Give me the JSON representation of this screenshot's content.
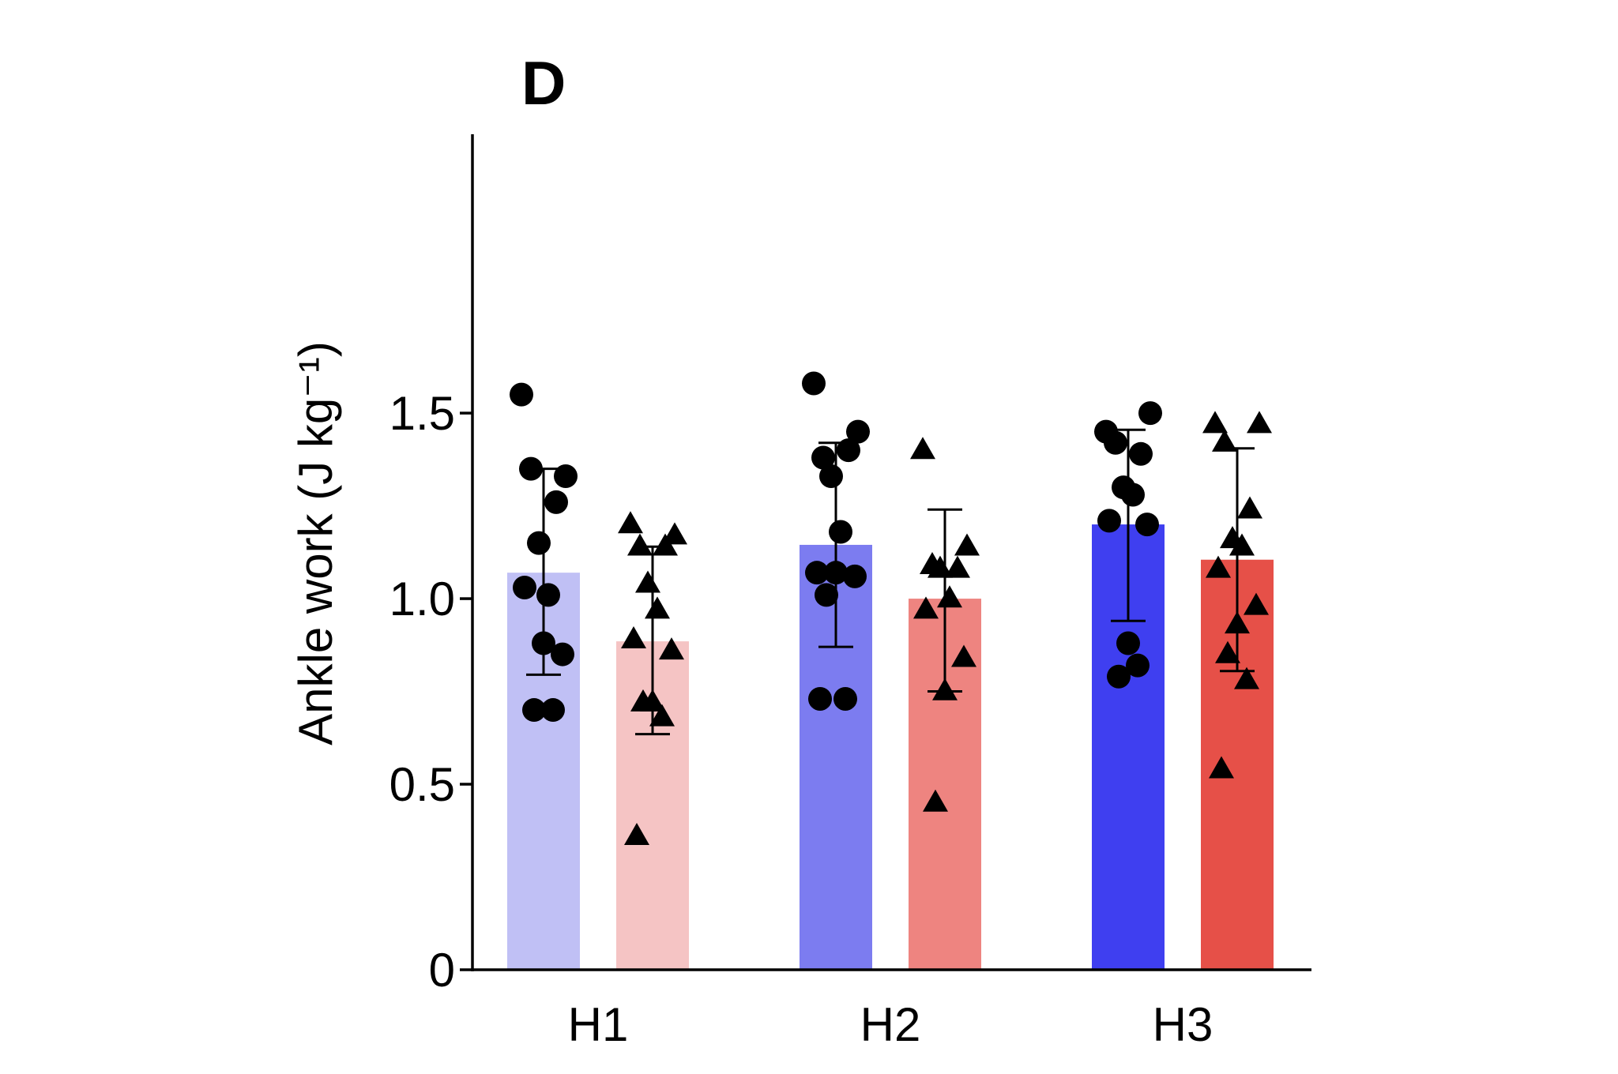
{
  "chart_data": {
    "type": "bar",
    "panel_label": "D",
    "ylabel": "Ankle work (J kg⁻¹)",
    "xlabel": "",
    "ylim": [
      0,
      1.7
    ],
    "yticks": [
      0,
      0.5,
      1.0,
      1.5
    ],
    "ytick_labels": [
      "0",
      "0.5",
      "1.0",
      "1.5"
    ],
    "categories": [
      "H1",
      "H2",
      "H3"
    ],
    "grid": false,
    "legend": "none",
    "series": [
      {
        "marker": "circle",
        "colors": [
          "#c0c0f5",
          "#7c7cf0",
          "#3f3ff0"
        ],
        "values": [
          1.07,
          1.145,
          1.2
        ],
        "error_low": [
          0.795,
          0.87,
          0.94
        ],
        "error_high": [
          1.35,
          1.42,
          1.455
        ],
        "points": [
          [
            1.55,
            1.33,
            1.35,
            1.26,
            1.15,
            1.01,
            1.03,
            0.85,
            0.88,
            0.7,
            0.7
          ],
          [
            1.58,
            1.45,
            1.38,
            1.4,
            1.33,
            1.18,
            1.07,
            1.06,
            1.07,
            1.01,
            0.73,
            0.73
          ],
          [
            1.45,
            1.5,
            1.42,
            1.39,
            1.3,
            1.28,
            1.21,
            1.2,
            0.88,
            0.79,
            0.82
          ]
        ]
      },
      {
        "marker": "triangle",
        "colors": [
          "#f5c4c4",
          "#ee8480",
          "#e65048"
        ],
        "values": [
          0.885,
          1.0,
          1.105
        ],
        "error_low": [
          0.635,
          0.75,
          0.805
        ],
        "error_high": [
          1.14,
          1.24,
          1.405
        ],
        "points": [
          [
            1.2,
            1.17,
            1.14,
            1.14,
            1.04,
            0.97,
            0.89,
            0.86,
            0.72,
            0.72,
            0.68,
            0.36
          ],
          [
            1.4,
            1.14,
            1.09,
            1.08,
            1.08,
            1.0,
            0.97,
            0.84,
            0.75,
            0.45
          ],
          [
            1.47,
            1.47,
            1.42,
            1.24,
            1.16,
            1.14,
            1.08,
            0.98,
            0.93,
            0.85,
            0.78,
            0.54
          ]
        ]
      }
    ]
  }
}
